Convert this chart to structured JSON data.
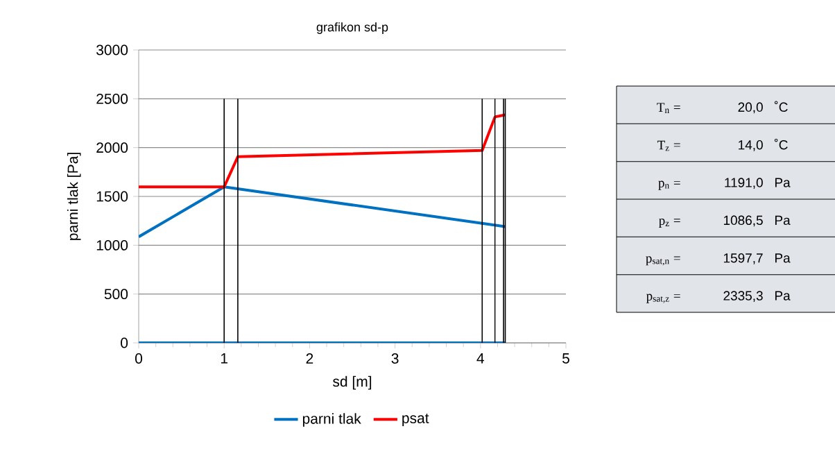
{
  "chart_data": [
    {
      "type": "line",
      "title": "grafikon sd-p",
      "xlabel": "sd [m]",
      "ylabel": "parni  tlak [Pa]",
      "xlim": [
        0,
        5
      ],
      "ylim": [
        0,
        3000
      ],
      "xticks": [
        0,
        1,
        2,
        3,
        4,
        5
      ],
      "yticks": [
        0,
        500,
        1000,
        1500,
        2000,
        2500,
        3000
      ],
      "grid": "y",
      "legend": "bottom",
      "marker": "none",
      "line_style": "solid",
      "series": [
        {
          "name": "parni tlak",
          "color": "#0070c0",
          "x": [
            0,
            1,
            4.29
          ],
          "values": [
            1086.5,
            1597.7,
            1191
          ]
        },
        {
          "name": "psat",
          "color": "#ff0000",
          "x": [
            0,
            1,
            1.16,
            4.02,
            4.17,
            4.29
          ],
          "values": [
            1597.7,
            1597.7,
            1907,
            1971,
            2315,
            2335.3
          ]
        },
        {
          "color": "#0070c0",
          "x": [
            0,
            4.29
          ],
          "values": [
            0,
            0
          ]
        },
        {
          "color": "#000000",
          "x": [
            1,
            1
          ],
          "values": [
            0,
            2500
          ]
        },
        {
          "color": "#000000",
          "x": [
            1.16,
            1.16
          ],
          "values": [
            0,
            2500
          ]
        },
        {
          "color": "#000000",
          "x": [
            4.02,
            4.02
          ],
          "values": [
            0,
            2500
          ]
        },
        {
          "color": "#000000",
          "x": [
            4.17,
            4.17
          ],
          "values": [
            0,
            2500
          ]
        },
        {
          "color": "#000000",
          "x": [
            4.27,
            4.27
          ],
          "values": [
            0,
            2500
          ]
        },
        {
          "color": "#000000",
          "x": [
            4.29,
            4.29
          ],
          "values": [
            0,
            2500
          ]
        }
      ]
    },
    {
      "type": "other",
      "annotations": [
        "T$_{n}$ =",
        "20,0",
        "˚C",
        "T$_{z}$ =",
        "14,0",
        "˚C",
        "p$_{n}$ =",
        "1191,0",
        "Pa",
        "p$_{z}$ =",
        "1086,5",
        "Pa",
        "p$_{sat,n}$ =",
        "1597,7",
        "Pa",
        "p$_{sat,z}$ =",
        "2335,3",
        "Pa"
      ]
    }
  ]
}
